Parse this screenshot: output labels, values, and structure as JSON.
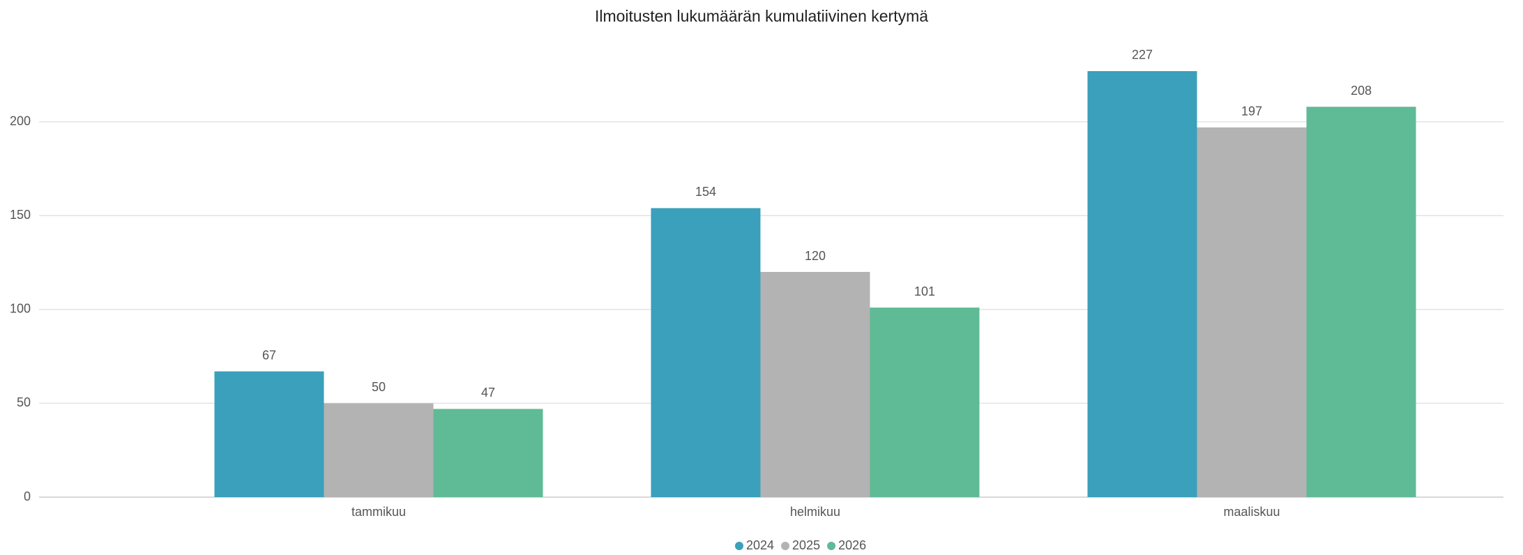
{
  "chart_data": {
    "type": "bar",
    "title": "Ilmoitusten lukumäärän kumulatiivinen kertymä",
    "categories": [
      "tammikuu",
      "helmikuu",
      "maaliskuu"
    ],
    "series": [
      {
        "name": "2024",
        "color": "#3aa0bb",
        "values": [
          67,
          154,
          227
        ]
      },
      {
        "name": "2025",
        "color": "#b3b3b3",
        "values": [
          50,
          120,
          197
        ]
      },
      {
        "name": "2026",
        "color": "#5fba96",
        "values": [
          47,
          101,
          208
        ]
      }
    ],
    "ylim": [
      0,
      240
    ],
    "yticks": [
      0,
      50,
      100,
      150,
      200
    ],
    "grid": true,
    "legend": "bottom"
  }
}
